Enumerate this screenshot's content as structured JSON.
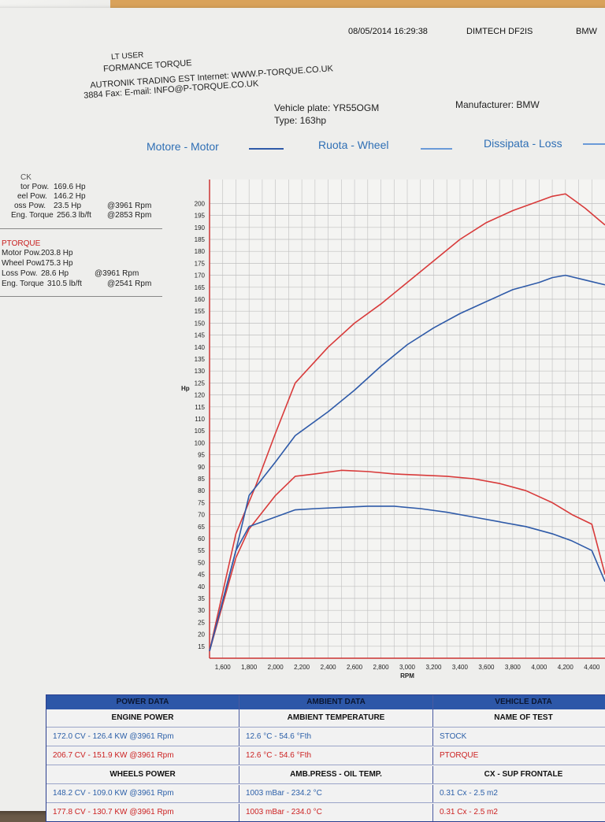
{
  "header": {
    "datetime": "08/05/2014 16:29:38",
    "device": "DIMTECH DF2IS",
    "brand_corner": "BMW",
    "company_lines": [
      "LT USER",
      "FORMANCE TORQUE",
      "AUTRONIK TRADING EST Internet: WWW.P-TORQUE.CO.UK",
      "3884 Fax: E-mail: INFO@P-TORQUE.CO.UK"
    ]
  },
  "vehicle": {
    "plate_label": "Vehicle plate: YR55OGM",
    "type_label": "Type: 163hp",
    "manufacturer_label": "Manufacturer: BMW"
  },
  "legend": {
    "motor": "Motore - Motor",
    "wheel": "Ruota - Wheel",
    "loss": "Dissipata - Loss"
  },
  "stock_summary": {
    "label": "CK",
    "lines": [
      [
        "tor Pow.",
        "169.6 Hp",
        ""
      ],
      [
        "eel Pow.",
        "146.2 Hp",
        ""
      ],
      [
        "oss Pow.",
        "23.5 Hp",
        "@3961 Rpm"
      ],
      [
        "Eng. Torque",
        "256.3 lb/ft",
        "@2853 Rpm"
      ]
    ]
  },
  "ptorque_summary": {
    "label": "PTORQUE",
    "lines": [
      [
        "Motor Pow.",
        "203.8 Hp",
        ""
      ],
      [
        "Wheel Pow.",
        "175.3 Hp",
        ""
      ],
      [
        "Loss Pow.",
        "28.6 Hp",
        "@3961 Rpm"
      ],
      [
        "Eng. Torque",
        "310.5 lb/ft",
        "@2541 Rpm"
      ]
    ]
  },
  "chart_data": {
    "type": "line",
    "xlabel": "RPM",
    "ylabel": "Hp",
    "xlim": [
      1500,
      4500
    ],
    "ylim": [
      10,
      210
    ],
    "x_ticks": [
      1600,
      1800,
      2000,
      2200,
      2400,
      2600,
      2800,
      3000,
      3200,
      3400,
      3600,
      3800,
      4000,
      4200,
      4400
    ],
    "y_ticks": [
      15,
      20,
      25,
      30,
      35,
      40,
      45,
      50,
      55,
      60,
      65,
      70,
      75,
      80,
      85,
      90,
      95,
      100,
      105,
      110,
      115,
      120,
      125,
      130,
      135,
      140,
      145,
      150,
      155,
      160,
      165,
      170,
      175,
      180,
      185,
      190,
      195,
      200
    ],
    "grid": true,
    "series": [
      {
        "color": "#d83a3a",
        "x": [
          1500,
          1700,
          1850,
          2000,
          2150,
          2400,
          2600,
          2800,
          3000,
          3200,
          3400,
          3600,
          3800,
          4000,
          4100,
          4200,
          4350,
          4500
        ],
        "values": [
          13,
          62,
          82,
          104,
          125,
          140,
          150,
          158,
          167,
          176,
          185,
          192,
          197,
          201,
          203,
          204,
          198,
          191
        ]
      },
      {
        "color": "#2e5aa8",
        "x": [
          1500,
          1700,
          1800,
          2000,
          2150,
          2400,
          2600,
          2800,
          3000,
          3200,
          3400,
          3600,
          3800,
          4000,
          4100,
          4200,
          4350,
          4500
        ],
        "values": [
          13,
          55,
          78,
          92,
          103,
          113,
          122,
          132,
          141,
          148,
          154,
          159,
          164,
          167,
          169,
          170,
          168,
          166
        ]
      },
      {
        "color": "#d83a3a",
        "x": [
          1500,
          1700,
          1800,
          2000,
          2150,
          2300,
          2500,
          2700,
          2900,
          3100,
          3300,
          3500,
          3700,
          3900,
          4100,
          4250,
          4400,
          4500
        ],
        "values": [
          13,
          52,
          64,
          78,
          86,
          87,
          88.5,
          88,
          87,
          86.5,
          86,
          85,
          83,
          80,
          75,
          70,
          66,
          45
        ]
      },
      {
        "color": "#2e5aa8",
        "x": [
          1500,
          1700,
          1800,
          2000,
          2150,
          2300,
          2500,
          2700,
          2900,
          3100,
          3300,
          3500,
          3700,
          3900,
          4100,
          4250,
          4400,
          4500
        ],
        "values": [
          13,
          55,
          65,
          69,
          72,
          72.5,
          73,
          73.5,
          73.5,
          72.5,
          71,
          69,
          67,
          65,
          62,
          59,
          55,
          42
        ]
      }
    ]
  },
  "table": {
    "headers": [
      "POWER DATA",
      "AMBIENT DATA",
      "VEHICLE DATA"
    ],
    "section1": [
      "ENGINE POWER",
      "AMBIENT TEMPERATURE",
      "NAME OF TEST"
    ],
    "row1": [
      "172.0 CV - 126.4 KW  @3961 Rpm",
      "12.6 °C - 54.6 °Fth",
      "STOCK"
    ],
    "row2": [
      "206.7 CV - 151.9 KW  @3961 Rpm",
      "12.6 °C - 54.6 °Fth",
      "PTORQUE"
    ],
    "section2": [
      "WHEELS POWER",
      "AMB.PRESS - OIL TEMP.",
      "CX - SUP FRONTALE"
    ],
    "row3": [
      "148.2 CV - 109.0 KW  @3961 Rpm",
      "1003 mBar - 234.2 °C",
      "0.31 Cx - 2.5 m2"
    ],
    "row4": [
      "177.8 CV - 130.7 KW  @3961 Rpm",
      "1003 mBar - 234.0 °C",
      "0.31 Cx - 2.5 m2"
    ]
  },
  "colors": {
    "ptorque": "#c81e1e",
    "stock": "#2f6fb5",
    "grid": "#bfbfbf"
  }
}
